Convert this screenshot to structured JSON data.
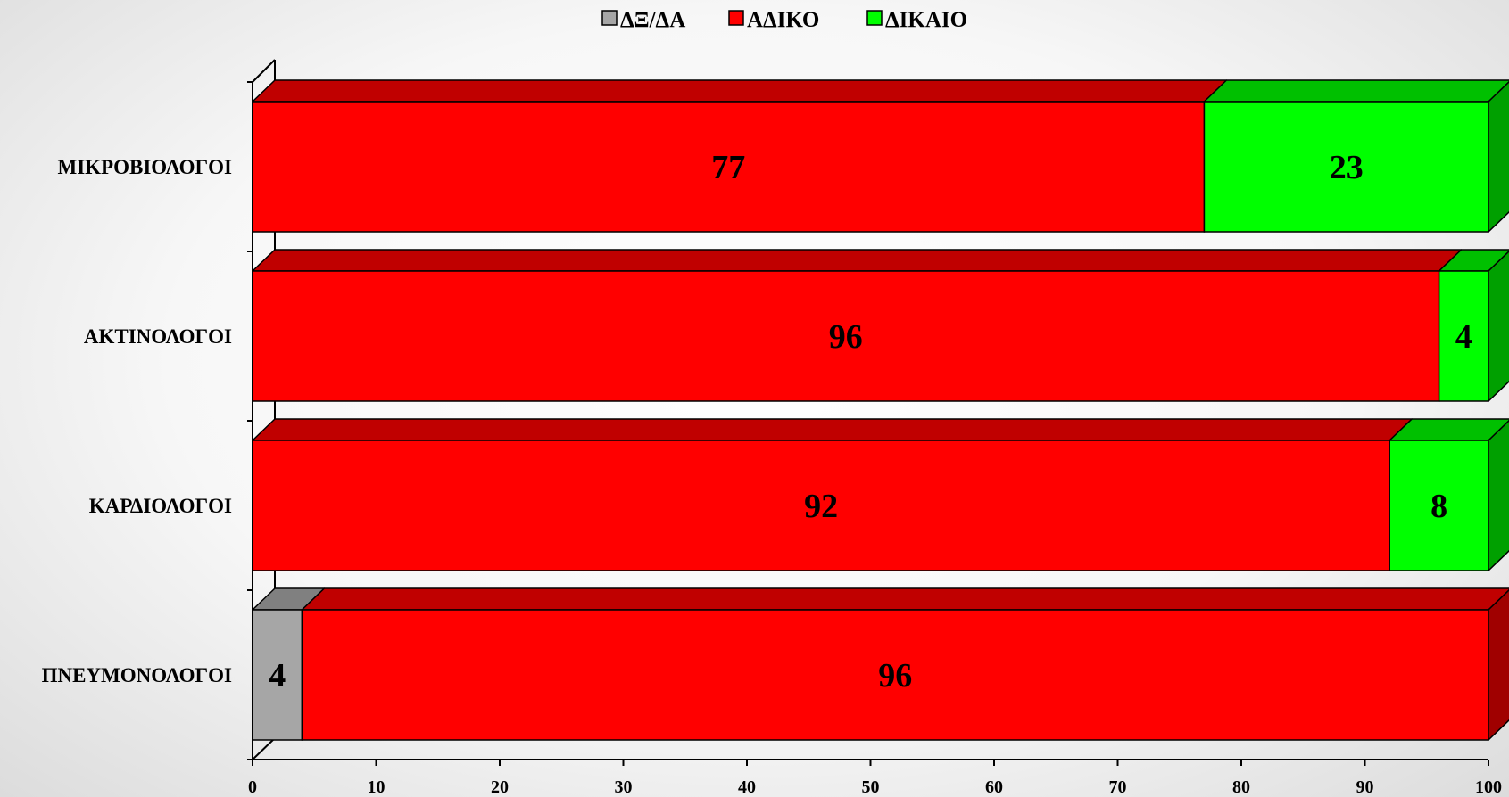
{
  "chart_data": {
    "type": "bar",
    "orientation": "horizontal",
    "stacked": true,
    "three_d": true,
    "categories": [
      "ΜΙΚΡΟΒΙΟΛΟΓΟΙ",
      "ΑΚΤΙΝΟΛΟΓΟΙ",
      "ΚΑΡΔΙΟΛΟΓΟΙ",
      "ΠΝΕΥΜΟΝΟΛΟΓΟΙ"
    ],
    "series": [
      {
        "name": "ΔΞ/ΔΑ",
        "color": "#a6a6a6",
        "top_color": "#808080",
        "side_color": "#707070",
        "values": [
          0,
          0,
          0,
          4
        ]
      },
      {
        "name": "ΑΔΙΚΟ",
        "color": "#ff0000",
        "top_color": "#c00000",
        "side_color": "#a00000",
        "values": [
          77,
          96,
          92,
          96
        ]
      },
      {
        "name": "ΔΙΚΑΙΟ",
        "color": "#00ff00",
        "top_color": "#00c000",
        "side_color": "#00a000",
        "values": [
          23,
          4,
          8,
          0
        ]
      }
    ],
    "xlim": [
      0,
      100
    ],
    "xticks": [
      "0",
      "10",
      "20",
      "30",
      "40",
      "50",
      "60",
      "70",
      "80",
      "90",
      "100"
    ],
    "legend_position": "top-center",
    "grid": false,
    "title": "",
    "xlabel": "",
    "ylabel": ""
  }
}
